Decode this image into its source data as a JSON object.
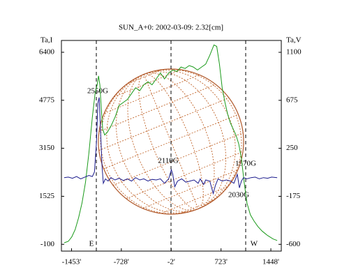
{
  "chart_data": {
    "type": "line",
    "title": "SUN_A+0: 2002-03-09: 2.32[cm]",
    "y_label": "Ta,I",
    "y2_label": "Ta,V",
    "xlim": [
      -1600,
      1600
    ],
    "xticks": [
      {
        "value": -1453,
        "label": "-1453'"
      },
      {
        "value": -728,
        "label": "-728'"
      },
      {
        "value": -2,
        "label": "-2'"
      },
      {
        "value": 723,
        "label": "723'"
      },
      {
        "value": 1448,
        "label": "1448'"
      }
    ],
    "ylim": [
      -330,
      6800
    ],
    "yticks": [
      6400,
      4775,
      3150,
      1525,
      -100
    ],
    "y2lim": [
      -660,
      1205
    ],
    "y2ticks": [
      1100,
      675,
      250,
      -175,
      -600
    ],
    "limb_labels": [
      "E",
      "W"
    ],
    "annotations": [
      "2550G",
      "2110G",
      "1570G",
      "2030G"
    ],
    "series": [
      {
        "name": "Ta,I",
        "color": "#1a9a1a",
        "x": [
          -1560,
          -1500,
          -1450,
          -1400,
          -1350,
          -1300,
          -1250,
          -1200,
          -1150,
          -1110,
          -1080,
          -1060,
          -1040,
          -1020,
          -1000,
          -970,
          -930,
          -880,
          -820,
          -760,
          -700,
          -640,
          -580,
          -520,
          -460,
          -400,
          -340,
          -280,
          -220,
          -160,
          -100,
          -40,
          20,
          80,
          140,
          200,
          260,
          320,
          380,
          440,
          500,
          560,
          620,
          660,
          700,
          740,
          780,
          820,
          860,
          900,
          940,
          980,
          1020,
          1060,
          1100,
          1150,
          1200,
          1260,
          1320,
          1400,
          1480,
          1540
        ],
        "values": [
          -50,
          0,
          150,
          400,
          800,
          1300,
          2000,
          3000,
          4200,
          5000,
          5300,
          5600,
          5300,
          4500,
          3800,
          3600,
          3700,
          3900,
          4200,
          4600,
          4700,
          4800,
          5000,
          5200,
          5100,
          5300,
          5400,
          5300,
          5500,
          5700,
          5500,
          5700,
          5800,
          5750,
          5900,
          5850,
          5950,
          5900,
          5800,
          5900,
          6000,
          6300,
          6650,
          6600,
          6000,
          5200,
          4700,
          4300,
          4000,
          3800,
          3600,
          3300,
          2800,
          2000,
          1300,
          900,
          700,
          500,
          350,
          200,
          80,
          30
        ]
      },
      {
        "name": "Ta,V",
        "color": "#1a1a8c",
        "axis": "y2",
        "x": [
          -1560,
          -1500,
          -1440,
          -1380,
          -1320,
          -1260,
          -1200,
          -1150,
          -1120,
          -1090,
          -1070,
          -1050,
          -1030,
          -1010,
          -990,
          -960,
          -920,
          -880,
          -820,
          -760,
          -700,
          -640,
          -580,
          -520,
          -460,
          -400,
          -340,
          -280,
          -220,
          -160,
          -100,
          -40,
          0,
          20,
          50,
          90,
          150,
          210,
          270,
          330,
          390,
          420,
          470,
          500,
          560,
          610,
          640,
          680,
          740,
          800,
          860,
          910,
          960,
          990,
          1020,
          1050,
          1100,
          1160,
          1220,
          1280,
          1340,
          1400,
          1460,
          1540
        ],
        "values": [
          -10,
          -5,
          -15,
          0,
          -20,
          -5,
          10,
          0,
          40,
          300,
          650,
          700,
          400,
          100,
          -60,
          -20,
          -40,
          -10,
          -30,
          -15,
          -35,
          -20,
          -40,
          -10,
          -30,
          -20,
          -40,
          -25,
          -30,
          -20,
          -60,
          -20,
          60,
          20,
          -90,
          -40,
          -20,
          -50,
          -40,
          -30,
          -60,
          -20,
          -70,
          -30,
          -40,
          -150,
          -80,
          -20,
          -40,
          -30,
          -40,
          -60,
          20,
          -100,
          -40,
          -10,
          -20,
          -10,
          -5,
          -20,
          -10,
          -15,
          -5,
          -10
        ]
      }
    ]
  }
}
